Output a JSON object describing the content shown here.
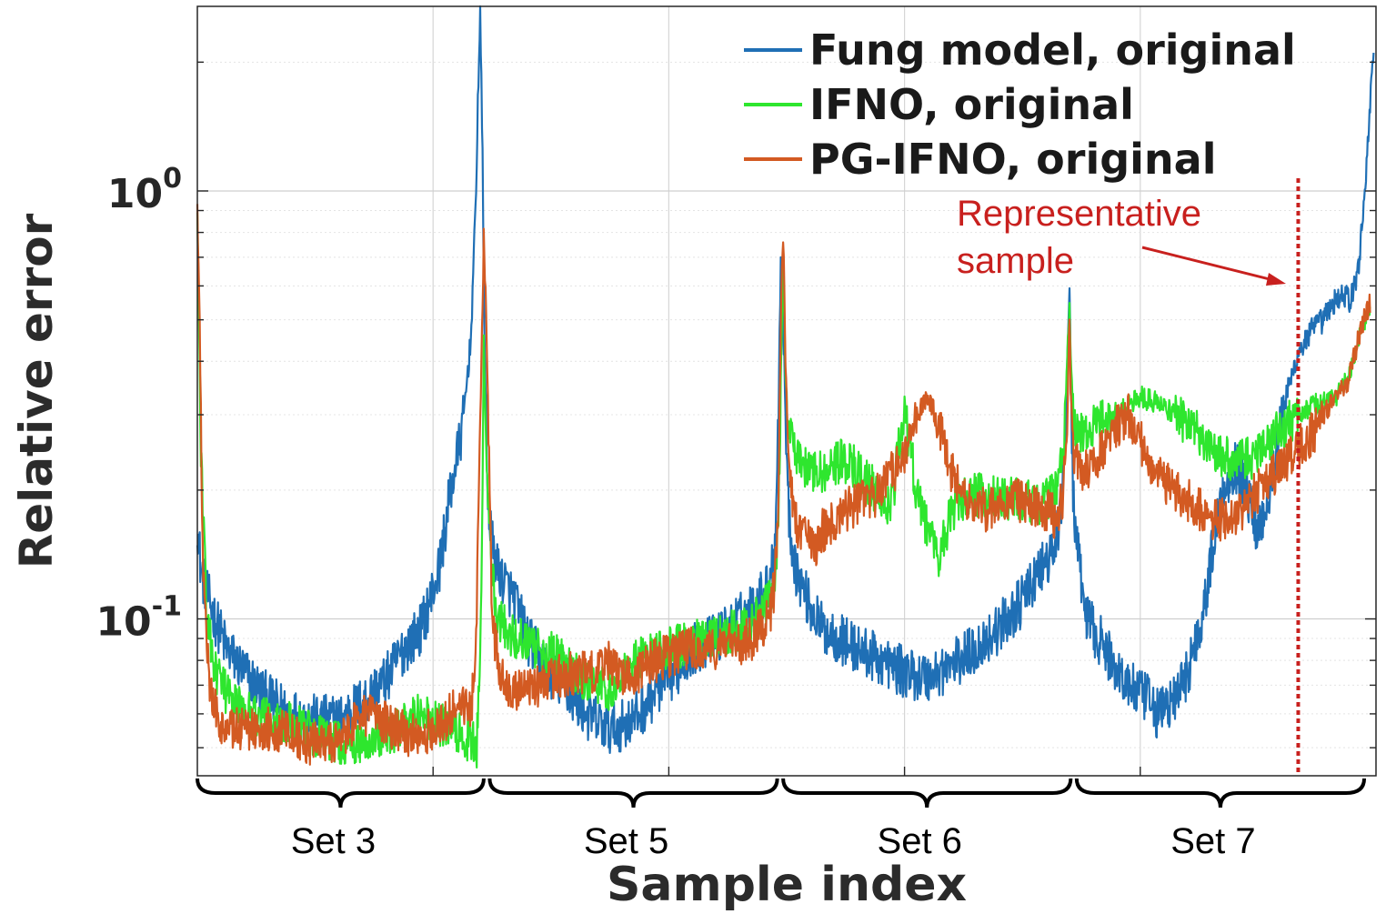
{
  "chart_data": {
    "type": "line",
    "title": "",
    "xlabel": "Sample index",
    "ylabel": "Relative error",
    "y_scale": "log",
    "ylim": [
      0.043,
      2.7
    ],
    "xlim": [
      0,
      1000
    ],
    "y_ticks": [
      {
        "value": 1,
        "base": "10",
        "exp": "0"
      },
      {
        "value": 0.1,
        "base": "10",
        "exp": "-1"
      }
    ],
    "grid": true,
    "legend_position": "top-right",
    "groups": [
      "Set 3",
      "Set 5",
      "Set 6",
      "Set 7"
    ],
    "group_bounds": [
      [
        0,
        243
      ],
      [
        248,
        492
      ],
      [
        497,
        741
      ],
      [
        746,
        990
      ]
    ],
    "annotation": {
      "text_lines": [
        "Representative",
        "sample"
      ],
      "x": 934,
      "color": "#c8201e"
    },
    "series": [
      {
        "name": "Fung model, original",
        "color": "#1f6fb5",
        "noise": 0.14,
        "x": [
          0,
          3,
          8,
          15,
          25,
          40,
          60,
          80,
          100,
          120,
          140,
          160,
          175,
          190,
          205,
          215,
          225,
          232,
          236,
          238,
          240,
          242,
          243,
          246,
          250,
          255,
          262,
          270,
          280,
          295,
          310,
          330,
          350,
          370,
          390,
          405,
          420,
          440,
          460,
          475,
          485,
          490,
          493,
          495,
          497,
          499,
          502,
          508,
          518,
          530,
          545,
          560,
          580,
          600,
          620,
          640,
          660,
          680,
          700,
          715,
          725,
          732,
          737,
          740,
          741,
          743,
          746,
          750,
          755,
          765,
          775,
          790,
          805,
          815,
          820,
          830,
          840,
          848,
          855,
          862,
          870,
          880,
          890,
          900,
          910,
          920,
          934,
          945,
          955,
          965,
          972,
          978,
          982,
          986,
          990,
          995,
          998
        ],
        "y": [
          0.17,
          0.13,
          0.115,
          0.1,
          0.085,
          0.075,
          0.065,
          0.06,
          0.058,
          0.058,
          0.064,
          0.072,
          0.085,
          0.095,
          0.13,
          0.2,
          0.28,
          0.45,
          0.9,
          1.6,
          2.6,
          1.2,
          0.6,
          0.2,
          0.15,
          0.13,
          0.12,
          0.11,
          0.09,
          0.077,
          0.07,
          0.06,
          0.055,
          0.058,
          0.068,
          0.075,
          0.085,
          0.09,
          0.1,
          0.11,
          0.12,
          0.15,
          0.3,
          0.7,
          0.5,
          0.3,
          0.17,
          0.13,
          0.11,
          0.095,
          0.09,
          0.085,
          0.08,
          0.075,
          0.073,
          0.078,
          0.085,
          0.095,
          0.11,
          0.13,
          0.14,
          0.17,
          0.3,
          0.6,
          0.35,
          0.2,
          0.15,
          0.12,
          0.1,
          0.09,
          0.08,
          0.07,
          0.065,
          0.06,
          0.062,
          0.065,
          0.075,
          0.09,
          0.11,
          0.15,
          0.2,
          0.23,
          0.2,
          0.16,
          0.2,
          0.3,
          0.42,
          0.47,
          0.5,
          0.55,
          0.58,
          0.55,
          0.6,
          0.7,
          0.95,
          1.6,
          2.2
        ]
      },
      {
        "name": "IFNO, original",
        "color": "#2ee62e",
        "noise": 0.12,
        "x": [
          0,
          3,
          8,
          15,
          30,
          50,
          70,
          90,
          110,
          130,
          150,
          170,
          185,
          200,
          215,
          225,
          232,
          237,
          240,
          242,
          243,
          246,
          250,
          255,
          262,
          270,
          280,
          290,
          300,
          310,
          320,
          330,
          340,
          350,
          360,
          370,
          385,
          400,
          420,
          440,
          460,
          475,
          485,
          490,
          493,
          495,
          497,
          499,
          502,
          506,
          512,
          520,
          530,
          540,
          548,
          555,
          565,
          575,
          585,
          590,
          595,
          600,
          605,
          610,
          620,
          630,
          640,
          650,
          660,
          670,
          680,
          690,
          700,
          710,
          720,
          730,
          735,
          738,
          740,
          741,
          743,
          746,
          750,
          760,
          770,
          785,
          800,
          815,
          830,
          845,
          860,
          880,
          900,
          915,
          934,
          950,
          965,
          975,
          985,
          990,
          995
        ],
        "y": [
          0.9,
          0.25,
          0.1,
          0.075,
          0.063,
          0.06,
          0.058,
          0.055,
          0.052,
          0.05,
          0.053,
          0.055,
          0.06,
          0.058,
          0.055,
          0.053,
          0.052,
          0.05,
          0.08,
          0.2,
          0.45,
          0.2,
          0.13,
          0.1,
          0.095,
          0.09,
          0.088,
          0.085,
          0.083,
          0.08,
          0.075,
          0.072,
          0.07,
          0.068,
          0.075,
          0.08,
          0.082,
          0.085,
          0.088,
          0.09,
          0.095,
          0.1,
          0.11,
          0.125,
          0.16,
          0.35,
          0.7,
          0.35,
          0.27,
          0.25,
          0.23,
          0.22,
          0.22,
          0.23,
          0.235,
          0.23,
          0.215,
          0.2,
          0.185,
          0.19,
          0.25,
          0.3,
          0.25,
          0.2,
          0.16,
          0.14,
          0.18,
          0.19,
          0.195,
          0.195,
          0.19,
          0.19,
          0.19,
          0.185,
          0.19,
          0.2,
          0.25,
          0.4,
          0.55,
          0.4,
          0.3,
          0.27,
          0.27,
          0.28,
          0.29,
          0.31,
          0.33,
          0.32,
          0.3,
          0.28,
          0.25,
          0.23,
          0.24,
          0.27,
          0.3,
          0.32,
          0.33,
          0.36,
          0.45,
          0.5,
          0.53
        ]
      },
      {
        "name": "PG-IFNO, original",
        "color": "#d35a22",
        "noise": 0.12,
        "x": [
          0,
          2,
          5,
          10,
          18,
          30,
          50,
          70,
          90,
          110,
          125,
          140,
          155,
          170,
          185,
          200,
          215,
          225,
          232,
          236,
          238,
          240,
          242,
          243,
          246,
          250,
          255,
          262,
          270,
          280,
          290,
          300,
          310,
          320,
          330,
          340,
          350,
          360,
          370,
          380,
          390,
          400,
          410,
          420,
          430,
          440,
          450,
          460,
          470,
          480,
          485,
          490,
          493,
          495,
          497,
          499,
          502,
          506,
          510,
          515,
          520,
          525,
          530,
          540,
          550,
          560,
          570,
          580,
          590,
          600,
          610,
          620,
          630,
          640,
          650,
          660,
          670,
          680,
          690,
          700,
          710,
          720,
          730,
          735,
          738,
          740,
          741,
          743,
          746,
          750,
          760,
          770,
          780,
          790,
          800,
          810,
          820,
          830,
          840,
          850,
          860,
          870,
          880,
          890,
          900,
          915,
          934,
          950,
          965,
          975,
          985,
          990,
          995
        ],
        "y": [
          0.9,
          0.5,
          0.12,
          0.07,
          0.058,
          0.055,
          0.056,
          0.055,
          0.052,
          0.05,
          0.053,
          0.06,
          0.058,
          0.055,
          0.053,
          0.055,
          0.06,
          0.065,
          0.06,
          0.08,
          0.15,
          0.3,
          0.55,
          0.8,
          0.4,
          0.1,
          0.08,
          0.07,
          0.067,
          0.068,
          0.07,
          0.072,
          0.074,
          0.075,
          0.075,
          0.075,
          0.08,
          0.075,
          0.074,
          0.078,
          0.08,
          0.082,
          0.083,
          0.085,
          0.086,
          0.086,
          0.087,
          0.088,
          0.09,
          0.095,
          0.1,
          0.12,
          0.2,
          0.5,
          0.8,
          0.4,
          0.22,
          0.18,
          0.16,
          0.165,
          0.155,
          0.15,
          0.16,
          0.17,
          0.18,
          0.185,
          0.19,
          0.2,
          0.22,
          0.24,
          0.3,
          0.33,
          0.28,
          0.22,
          0.19,
          0.18,
          0.18,
          0.185,
          0.19,
          0.188,
          0.185,
          0.18,
          0.17,
          0.2,
          0.3,
          0.5,
          0.35,
          0.25,
          0.23,
          0.22,
          0.23,
          0.25,
          0.28,
          0.3,
          0.26,
          0.23,
          0.21,
          0.2,
          0.19,
          0.18,
          0.17,
          0.17,
          0.175,
          0.185,
          0.2,
          0.22,
          0.25,
          0.28,
          0.33,
          0.35,
          0.45,
          0.5,
          0.55
        ]
      }
    ]
  }
}
